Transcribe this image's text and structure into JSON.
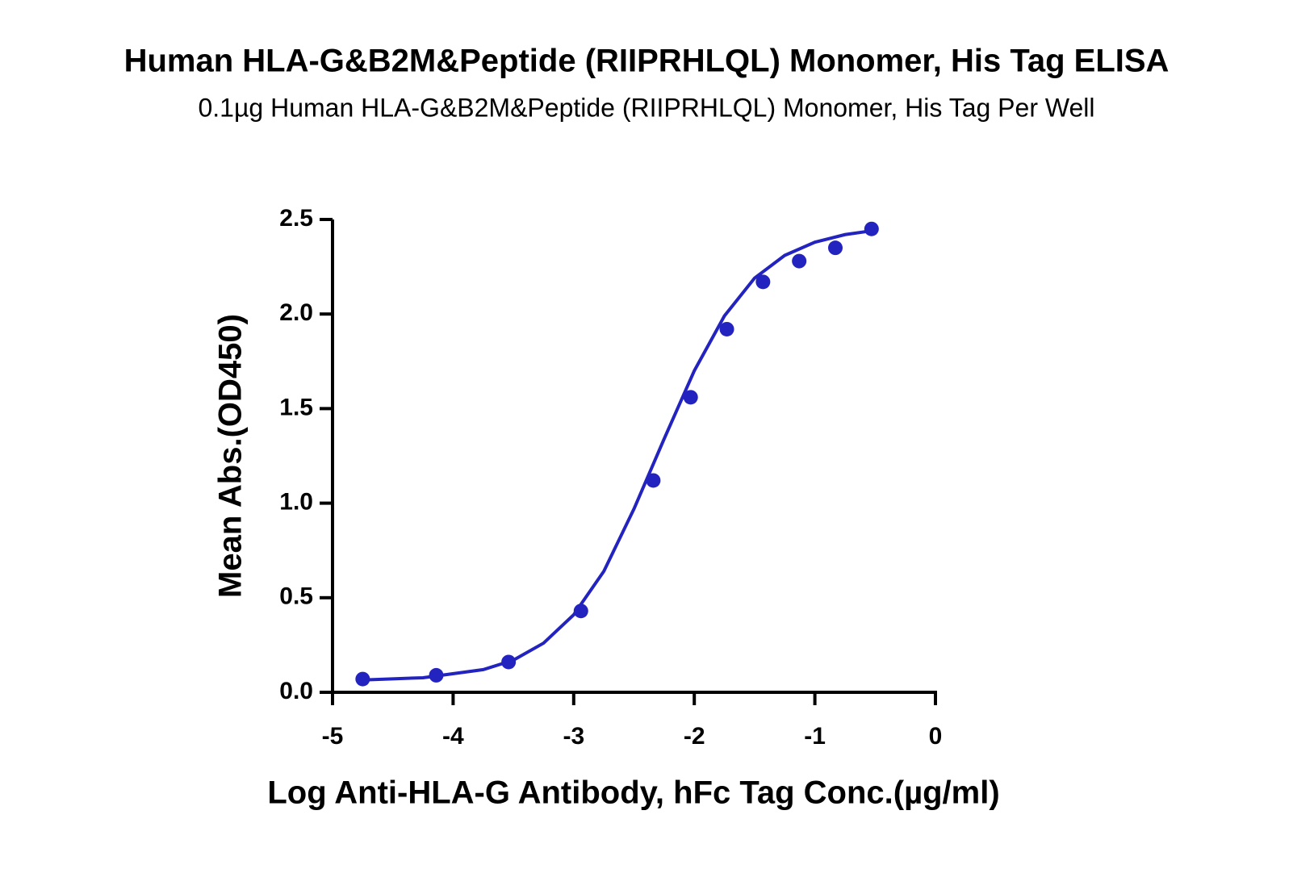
{
  "chart_data": {
    "type": "scatter",
    "title": "Human HLA-G&B2M&Peptide (RIIPRHLQL) Monomer, His Tag ELISA",
    "subtitle": "0.1µg Human HLA-G&B2M&Peptide (RIIPRHLQL) Monomer, His Tag Per Well",
    "x_label": "Log Anti-HLA-G Antibody, hFc Tag Conc.(µg/ml)",
    "y_label": "Mean Abs.(OD450)",
    "color": "#2323c0",
    "x": [
      -4.75,
      -4.14,
      -3.54,
      -2.94,
      -2.34,
      -2.03,
      -1.73,
      -1.43,
      -1.13,
      -0.83,
      -0.53
    ],
    "values": [
      0.07,
      0.09,
      0.16,
      0.43,
      1.12,
      1.56,
      1.92,
      2.17,
      2.28,
      2.35,
      2.45
    ],
    "curve": {
      "x": [
        -4.75,
        -4.25,
        -3.75,
        -3.5,
        -3.25,
        -3.0,
        -2.75,
        -2.5,
        -2.25,
        -2.0,
        -1.75,
        -1.5,
        -1.25,
        -1.0,
        -0.75,
        -0.53
      ],
      "values": [
        0.065,
        0.077,
        0.12,
        0.17,
        0.26,
        0.41,
        0.64,
        0.97,
        1.34,
        1.7,
        1.99,
        2.19,
        2.31,
        2.38,
        2.42,
        2.44
      ]
    },
    "xlim": [
      -5,
      0
    ],
    "xticks": [
      -5,
      -4,
      -3,
      -2,
      -1,
      0
    ],
    "ylim": [
      0,
      2.5
    ],
    "yticks": [
      {
        "value": 0,
        "label": "0.0"
      },
      0.5,
      {
        "value": 1,
        "label": "1.0"
      },
      1.5,
      {
        "value": 2,
        "label": "2.0"
      },
      2.5
    ]
  }
}
